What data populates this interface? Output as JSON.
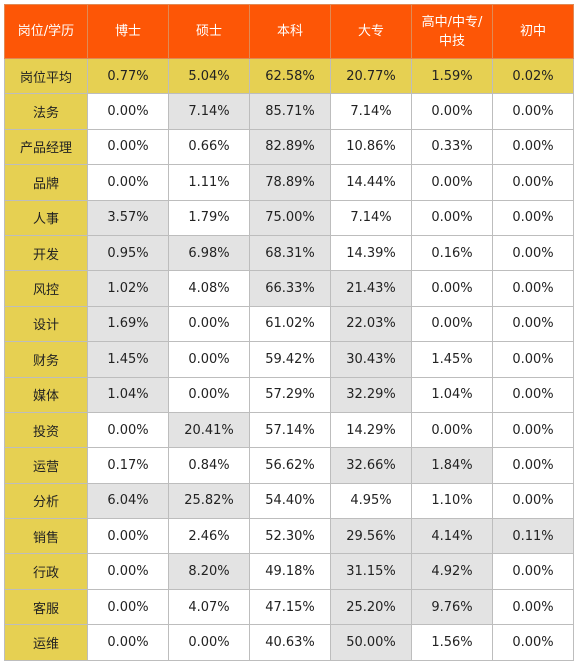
{
  "header": {
    "columns": [
      "岗位/学历",
      "博士",
      "硕士",
      "本科",
      "大专",
      "高中/中专/\n中技",
      "初中"
    ]
  },
  "rows": [
    {
      "label": "岗位平均",
      "values": [
        "0.77%",
        "5.04%",
        "62.58%",
        "20.77%",
        "1.59%",
        "0.02%"
      ],
      "highlight": [
        false,
        false,
        false,
        false,
        false,
        false
      ]
    },
    {
      "label": "法务",
      "values": [
        "0.00%",
        "7.14%",
        "85.71%",
        "7.14%",
        "0.00%",
        "0.00%"
      ],
      "highlight": [
        false,
        true,
        true,
        false,
        false,
        false
      ]
    },
    {
      "label": "产品经理",
      "values": [
        "0.00%",
        "0.66%",
        "82.89%",
        "10.86%",
        "0.33%",
        "0.00%"
      ],
      "highlight": [
        false,
        false,
        true,
        false,
        false,
        false
      ]
    },
    {
      "label": "品牌",
      "values": [
        "0.00%",
        "1.11%",
        "78.89%",
        "14.44%",
        "0.00%",
        "0.00%"
      ],
      "highlight": [
        false,
        false,
        true,
        false,
        false,
        false
      ]
    },
    {
      "label": "人事",
      "values": [
        "3.57%",
        "1.79%",
        "75.00%",
        "7.14%",
        "0.00%",
        "0.00%"
      ],
      "highlight": [
        true,
        false,
        true,
        false,
        false,
        false
      ]
    },
    {
      "label": "开发",
      "values": [
        "0.95%",
        "6.98%",
        "68.31%",
        "14.39%",
        "0.16%",
        "0.00%"
      ],
      "highlight": [
        true,
        true,
        true,
        false,
        false,
        false
      ]
    },
    {
      "label": "风控",
      "values": [
        "1.02%",
        "4.08%",
        "66.33%",
        "21.43%",
        "0.00%",
        "0.00%"
      ],
      "highlight": [
        true,
        false,
        true,
        true,
        false,
        false
      ]
    },
    {
      "label": "设计",
      "values": [
        "1.69%",
        "0.00%",
        "61.02%",
        "22.03%",
        "0.00%",
        "0.00%"
      ],
      "highlight": [
        true,
        false,
        false,
        true,
        false,
        false
      ]
    },
    {
      "label": "财务",
      "values": [
        "1.45%",
        "0.00%",
        "59.42%",
        "30.43%",
        "1.45%",
        "0.00%"
      ],
      "highlight": [
        true,
        false,
        false,
        true,
        false,
        false
      ]
    },
    {
      "label": "媒体",
      "values": [
        "1.04%",
        "0.00%",
        "57.29%",
        "32.29%",
        "1.04%",
        "0.00%"
      ],
      "highlight": [
        true,
        false,
        false,
        true,
        false,
        false
      ]
    },
    {
      "label": "投资",
      "values": [
        "0.00%",
        "20.41%",
        "57.14%",
        "14.29%",
        "0.00%",
        "0.00%"
      ],
      "highlight": [
        false,
        true,
        false,
        false,
        false,
        false
      ]
    },
    {
      "label": "运营",
      "values": [
        "0.17%",
        "0.84%",
        "56.62%",
        "32.66%",
        "1.84%",
        "0.00%"
      ],
      "highlight": [
        false,
        false,
        false,
        true,
        true,
        false
      ]
    },
    {
      "label": "分析",
      "values": [
        "6.04%",
        "25.82%",
        "54.40%",
        "4.95%",
        "1.10%",
        "0.00%"
      ],
      "highlight": [
        true,
        true,
        false,
        false,
        false,
        false
      ]
    },
    {
      "label": "销售",
      "values": [
        "0.00%",
        "2.46%",
        "52.30%",
        "29.56%",
        "4.14%",
        "0.11%"
      ],
      "highlight": [
        false,
        false,
        false,
        true,
        true,
        true
      ]
    },
    {
      "label": "行政",
      "values": [
        "0.00%",
        "8.20%",
        "49.18%",
        "31.15%",
        "4.92%",
        "0.00%"
      ],
      "highlight": [
        false,
        true,
        false,
        true,
        true,
        false
      ]
    },
    {
      "label": "客服",
      "values": [
        "0.00%",
        "4.07%",
        "47.15%",
        "25.20%",
        "9.76%",
        "0.00%"
      ],
      "highlight": [
        false,
        false,
        false,
        true,
        true,
        false
      ]
    },
    {
      "label": "运维",
      "values": [
        "0.00%",
        "0.00%",
        "40.63%",
        "50.00%",
        "1.56%",
        "0.00%"
      ],
      "highlight": [
        false,
        false,
        false,
        true,
        false,
        false
      ]
    }
  ],
  "colors": {
    "header_bg": "#fd5606",
    "label_bg": "#e6d052",
    "highlight_bg": "#e3e3e3"
  }
}
